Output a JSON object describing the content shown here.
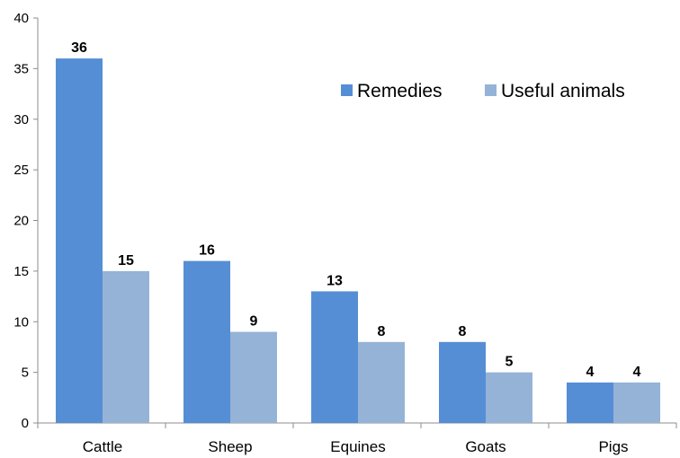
{
  "chart_data": {
    "type": "bar",
    "title": "",
    "xlabel": "",
    "ylabel": "",
    "categories": [
      "Cattle",
      "Sheep",
      "Equines",
      "Goats",
      "Pigs"
    ],
    "series": [
      {
        "name": "Remedies",
        "color": "#558ed5",
        "values": [
          36,
          16,
          13,
          8,
          4
        ]
      },
      {
        "name": "Useful animals",
        "color": "#95b3d7",
        "values": [
          15,
          9,
          8,
          5,
          4
        ]
      }
    ],
    "ylim": [
      0,
      40
    ],
    "yticks": [
      "0",
      "5",
      "10",
      "15",
      "20",
      "25",
      "30",
      "35",
      "40"
    ],
    "grid": false,
    "legend_position": "top-right",
    "data_labels": true
  }
}
